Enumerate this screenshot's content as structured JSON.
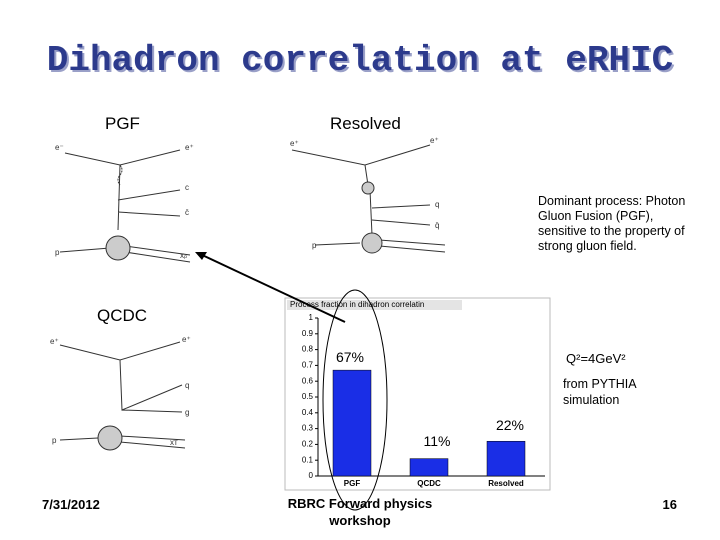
{
  "slide": {
    "title": "Dihadron correlation at eRHIC",
    "labels": {
      "pgf": "PGF",
      "resolved": "Resolved",
      "qcdc": "QCDC"
    },
    "note": "Dominant process: Photon Gluon Fusion (PGF), sensitive to the property of strong gluon field.",
    "q2": "Q²=4GeV²",
    "source": "from PYTHIA simulation",
    "footer": {
      "date": "7/31/2012",
      "event": "RBRC Forward physics workshop",
      "page": "16"
    },
    "diagrams": {
      "pgf": [
        "e⁻",
        "e⁺",
        "c",
        "c̄",
        "p",
        "xₚ"
      ],
      "resolved": [
        "e⁺",
        "e⁺",
        "q",
        "q̄",
        "p"
      ],
      "qcdc": [
        "e⁺",
        "e⁺",
        "q",
        "g",
        "p",
        "xᴛ"
      ]
    }
  },
  "chart_data": {
    "type": "bar",
    "title": "Process fraction in dihadron correlatin",
    "categories": [
      "PGF",
      "QCDC",
      "Resolved"
    ],
    "values": [
      0.67,
      0.11,
      0.22
    ],
    "value_labels": [
      "67%",
      "11%",
      "22%"
    ],
    "color": "#1a2ee6",
    "ylim": [
      0,
      1
    ],
    "yticks": [
      0,
      0.1,
      0.2,
      0.3,
      0.4,
      0.5,
      0.6,
      0.7,
      0.8,
      0.9,
      1
    ]
  }
}
